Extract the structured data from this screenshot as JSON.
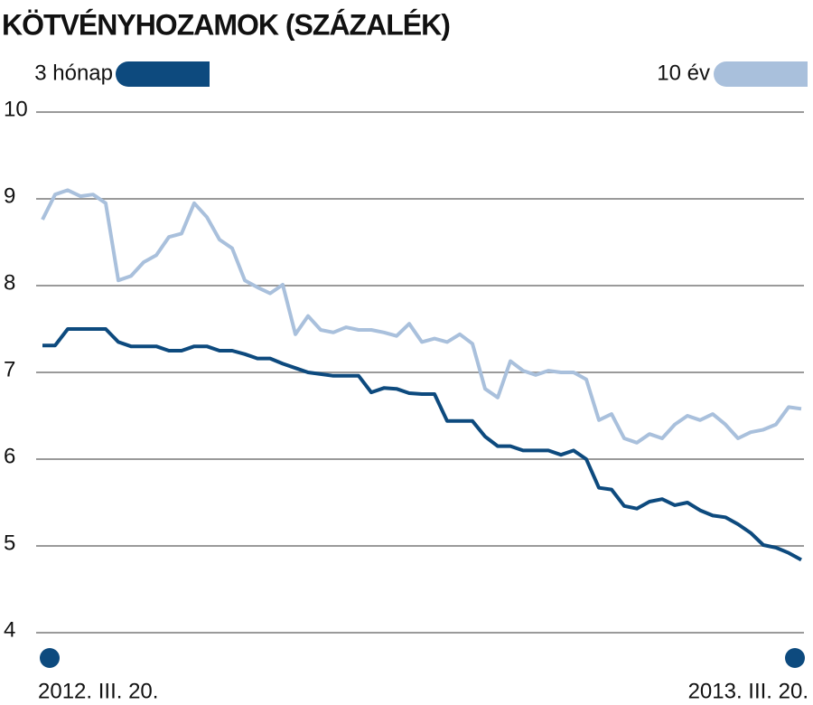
{
  "chart_data": {
    "type": "line",
    "title": "KÖTVÉNYHOZAMOK (SZÁZALÉK)",
    "categories": [
      "2012. III. 20.",
      null,
      null,
      null,
      null,
      null,
      null,
      null,
      null,
      null,
      null,
      null,
      null,
      null,
      null,
      null,
      null,
      null,
      null,
      null,
      null,
      null,
      null,
      null,
      null,
      null,
      null,
      null,
      null,
      null,
      null,
      null,
      null,
      null,
      null,
      null,
      null,
      null,
      null,
      null,
      null,
      null,
      null,
      null,
      null,
      null,
      null,
      null,
      null,
      null,
      null,
      null,
      null,
      null,
      null,
      null,
      null,
      null,
      null,
      null,
      "2013. III. 20."
    ],
    "series": [
      {
        "name": "3 hónap",
        "color": "#0d4a7e",
        "values": [
          7.31,
          7.31,
          7.5,
          7.5,
          7.5,
          7.5,
          7.35,
          7.3,
          7.3,
          7.3,
          7.25,
          7.25,
          7.3,
          7.3,
          7.25,
          7.25,
          7.21,
          7.16,
          7.16,
          7.1,
          7.05,
          7.0,
          6.98,
          6.96,
          6.96,
          6.96,
          6.77,
          6.82,
          6.81,
          6.76,
          6.75,
          6.75,
          6.44,
          6.44,
          6.44,
          6.26,
          6.15,
          6.15,
          6.1,
          6.1,
          6.1,
          6.05,
          6.1,
          6.0,
          5.67,
          5.65,
          5.46,
          5.43,
          5.51,
          5.54,
          5.47,
          5.5,
          5.41,
          5.35,
          5.33,
          5.25,
          5.15,
          5.01,
          4.98,
          4.92,
          4.84
        ]
      },
      {
        "name": "10 év",
        "color": "#a9c0dc",
        "values": [
          8.76,
          9.05,
          9.1,
          9.03,
          9.05,
          8.95,
          8.06,
          8.11,
          8.27,
          8.35,
          8.56,
          8.6,
          8.95,
          8.79,
          8.53,
          8.43,
          8.06,
          7.98,
          7.91,
          8.01,
          7.44,
          7.65,
          7.49,
          7.46,
          7.52,
          7.49,
          7.49,
          7.46,
          7.42,
          7.56,
          7.35,
          7.39,
          7.35,
          7.44,
          7.33,
          6.81,
          6.71,
          7.13,
          7.02,
          6.97,
          7.02,
          7.0,
          7.0,
          6.92,
          6.45,
          6.52,
          6.24,
          6.19,
          6.29,
          6.24,
          6.4,
          6.5,
          6.45,
          6.52,
          6.4,
          6.24,
          6.31,
          6.34,
          6.4,
          6.6,
          6.58
        ]
      }
    ],
    "ylim": [
      4,
      10
    ],
    "yticks": [
      4,
      5,
      6,
      7,
      8,
      9,
      10
    ],
    "grid": true,
    "legend": "top"
  }
}
